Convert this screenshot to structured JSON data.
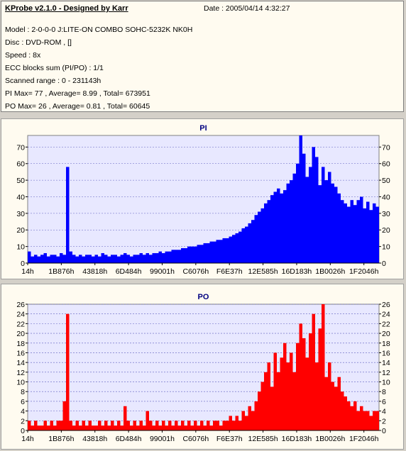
{
  "header": {
    "app_title": "KProbe v2.1.0 - Designed by Karr",
    "date": "Date : 2005/04/14 4:32:27",
    "lines": [
      "Model : 2-0-0-0 J:LITE-ON COMBO SOHC-5232K NK0H",
      "Disc : DVD-ROM ,  []",
      "Speed : 8x",
      "ECC blocks sum (PI/PO) : 1/1",
      "Scanned range : 0 - 231143h",
      "PI Max= 77 , Average= 8.99 , Total= 673951",
      "PO Max= 26 , Average= 0.81 , Total= 60645"
    ]
  },
  "colors": {
    "panel_bg": "#fffbf0",
    "plot_bg": "#e8e8ff",
    "pi": "#0000ff",
    "po": "#ff0000",
    "grid": "#6060c0"
  },
  "chart_data": [
    {
      "type": "bar",
      "title": "PI",
      "x_tick_labels": [
        "14h",
        "1B876h",
        "43818h",
        "6D484h",
        "99001h",
        "C6076h",
        "F6E37h",
        "12E585h",
        "16D183h",
        "1B0026h",
        "1F2046h"
      ],
      "x_range": [
        0,
        231143
      ],
      "ylim": [
        0,
        77
      ],
      "y_ticks": [
        0,
        10,
        20,
        30,
        40,
        50,
        60,
        70
      ],
      "grid": true,
      "legend": "none",
      "color": "#0000ff",
      "x_unit": "scanned position (hex, sampled)",
      "values": [
        7,
        4,
        5,
        4,
        5,
        6,
        4,
        5,
        5,
        4,
        6,
        5,
        58,
        7,
        5,
        4,
        5,
        4,
        5,
        5,
        4,
        5,
        4,
        6,
        5,
        4,
        5,
        5,
        4,
        5,
        6,
        5,
        4,
        5,
        5,
        6,
        5,
        6,
        5,
        6,
        6,
        7,
        6,
        7,
        7,
        8,
        8,
        8,
        9,
        9,
        10,
        10,
        10,
        11,
        11,
        12,
        12,
        13,
        13,
        14,
        14,
        15,
        15,
        16,
        17,
        18,
        19,
        21,
        22,
        24,
        26,
        29,
        31,
        33,
        36,
        38,
        41,
        43,
        45,
        42,
        44,
        48,
        50,
        54,
        60,
        77,
        66,
        52,
        58,
        70,
        64,
        47,
        58,
        50,
        55,
        48,
        46,
        42,
        38,
        36,
        34,
        38,
        35,
        38,
        40,
        33,
        37,
        32,
        36,
        34
      ]
    },
    {
      "type": "bar",
      "title": "PO",
      "x_tick_labels": [
        "14h",
        "1B876h",
        "43818h",
        "6D484h",
        "99001h",
        "C6076h",
        "F6E37h",
        "12E585h",
        "16D183h",
        "1B0026h",
        "1F2046h"
      ],
      "x_range": [
        0,
        231143
      ],
      "ylim": [
        0,
        26
      ],
      "y_ticks": [
        0,
        2,
        4,
        6,
        8,
        10,
        12,
        14,
        16,
        18,
        20,
        22,
        24,
        26
      ],
      "grid": true,
      "legend": "none",
      "color": "#ff0000",
      "x_unit": "scanned position (hex, sampled)",
      "values": [
        2,
        1,
        2,
        1,
        1,
        2,
        1,
        2,
        1,
        2,
        2,
        6,
        24,
        2,
        1,
        2,
        1,
        2,
        1,
        2,
        1,
        1,
        2,
        1,
        2,
        1,
        2,
        1,
        2,
        1,
        5,
        2,
        1,
        2,
        1,
        2,
        1,
        4,
        2,
        1,
        2,
        1,
        2,
        1,
        2,
        1,
        2,
        1,
        2,
        1,
        2,
        1,
        2,
        1,
        2,
        1,
        2,
        1,
        2,
        2,
        1,
        2,
        2,
        3,
        2,
        3,
        2,
        4,
        3,
        5,
        4,
        6,
        8,
        10,
        12,
        14,
        9,
        16,
        12,
        15,
        18,
        14,
        16,
        12,
        18,
        22,
        19,
        15,
        20,
        24,
        14,
        21,
        26,
        11,
        14,
        10,
        9,
        11,
        8,
        7,
        6,
        5,
        6,
        4,
        5,
        4,
        4,
        3,
        4,
        4
      ]
    }
  ]
}
